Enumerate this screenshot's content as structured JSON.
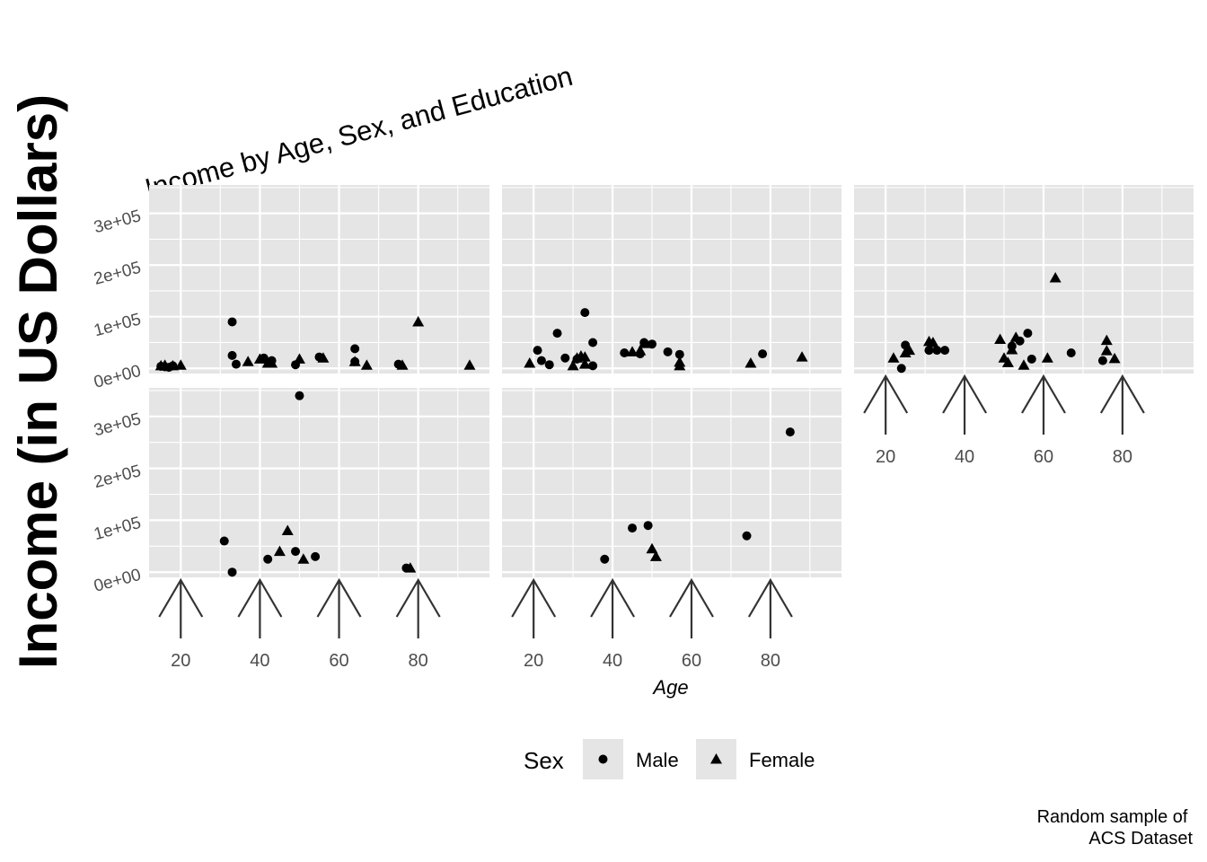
{
  "chart_data": {
    "type": "scatter",
    "title": "Income by Age, Sex, and Education",
    "xlabel": "Age",
    "ylabel": "Income (in US Dollars)",
    "caption": "Random sample of\nACS Dataset",
    "xlim": [
      12,
      98
    ],
    "ylim": [
      -10000,
      355000
    ],
    "x_ticks": [
      20,
      40,
      60,
      80
    ],
    "x_tick_labels": [
      "20",
      "40",
      "60",
      "80"
    ],
    "y_ticks": [
      0,
      100000,
      200000,
      300000
    ],
    "y_tick_labels": [
      "0e+00",
      "1e+05",
      "2e+05",
      "3e+05"
    ],
    "grid": true,
    "panel_background": "#e5e5e5",
    "grid_color": "#ffffff",
    "point_color": "#000000",
    "legend": {
      "title": "Sex",
      "position": "bottom",
      "entries": [
        {
          "label": "Male",
          "shape": "circle"
        },
        {
          "label": "Female",
          "shape": "triangle"
        }
      ]
    },
    "series_names": [
      "Male",
      "Female"
    ],
    "panels": [
      {
        "male": [
          [
            15,
            4000
          ],
          [
            16,
            3000
          ],
          [
            17,
            2000
          ],
          [
            18,
            5000
          ],
          [
            33,
            90000
          ],
          [
            33,
            25000
          ],
          [
            34,
            8000
          ],
          [
            41,
            20000
          ],
          [
            43,
            15000
          ],
          [
            49,
            7000
          ],
          [
            55,
            22000
          ],
          [
            64,
            38000
          ],
          [
            64,
            13000
          ],
          [
            75,
            8000
          ]
        ],
        "female": [
          [
            15,
            5000
          ],
          [
            16,
            6000
          ],
          [
            18,
            5000
          ],
          [
            20,
            6000
          ],
          [
            37,
            13000
          ],
          [
            40,
            18000
          ],
          [
            42,
            10000
          ],
          [
            43,
            10000
          ],
          [
            50,
            18000
          ],
          [
            56,
            20000
          ],
          [
            64,
            13000
          ],
          [
            67,
            6000
          ],
          [
            76,
            6000
          ],
          [
            80,
            90000
          ],
          [
            93,
            6000
          ]
        ]
      },
      {
        "male": [
          [
            21,
            35000
          ],
          [
            22,
            15000
          ],
          [
            24,
            7000
          ],
          [
            26,
            68000
          ],
          [
            28,
            20000
          ],
          [
            31,
            18000
          ],
          [
            33,
            108000
          ],
          [
            35,
            50000
          ],
          [
            35,
            5000
          ],
          [
            43,
            30000
          ],
          [
            47,
            28000
          ],
          [
            48,
            50000
          ],
          [
            50,
            47000
          ],
          [
            54,
            32000
          ],
          [
            57,
            27000
          ],
          [
            78,
            28000
          ]
        ],
        "female": [
          [
            19,
            10000
          ],
          [
            30,
            5000
          ],
          [
            31,
            20000
          ],
          [
            32,
            24000
          ],
          [
            33,
            22000
          ],
          [
            33,
            8000
          ],
          [
            45,
            32000
          ],
          [
            47,
            34000
          ],
          [
            48,
            48000
          ],
          [
            57,
            12000
          ],
          [
            57,
            5000
          ],
          [
            75,
            10000
          ],
          [
            88,
            22000
          ]
        ]
      },
      {
        "male": [
          [
            24,
            0
          ],
          [
            25,
            45000
          ],
          [
            31,
            35000
          ],
          [
            31,
            35000
          ],
          [
            33,
            35000
          ],
          [
            35,
            35000
          ],
          [
            52,
            43000
          ],
          [
            54,
            53000
          ],
          [
            56,
            68000
          ],
          [
            57,
            18000
          ],
          [
            67,
            30000
          ],
          [
            75,
            15000
          ]
        ],
        "female": [
          [
            22,
            20000
          ],
          [
            25,
            30000
          ],
          [
            26,
            35000
          ],
          [
            31,
            52000
          ],
          [
            32,
            50000
          ],
          [
            49,
            56000
          ],
          [
            50,
            20000
          ],
          [
            51,
            11000
          ],
          [
            52,
            36000
          ],
          [
            53,
            60000
          ],
          [
            55,
            6000
          ],
          [
            61,
            20000
          ],
          [
            63,
            175000
          ],
          [
            76,
            34000
          ],
          [
            76,
            54000
          ],
          [
            78,
            19000
          ]
        ]
      },
      {
        "male": [
          [
            31,
            60000
          ],
          [
            33,
            0
          ],
          [
            42,
            25000
          ],
          [
            49,
            40000
          ],
          [
            50,
            340000
          ],
          [
            54,
            30000
          ],
          [
            77,
            8000
          ]
        ],
        "female": [
          [
            45,
            40000
          ],
          [
            47,
            80000
          ],
          [
            51,
            25000
          ],
          [
            78,
            8000
          ]
        ]
      },
      {
        "male": [
          [
            38,
            25000
          ],
          [
            45,
            85000
          ],
          [
            49,
            90000
          ],
          [
            74,
            70000
          ],
          [
            85,
            270000
          ]
        ],
        "female": [
          [
            50,
            45000
          ],
          [
            51,
            30000
          ]
        ]
      }
    ]
  }
}
